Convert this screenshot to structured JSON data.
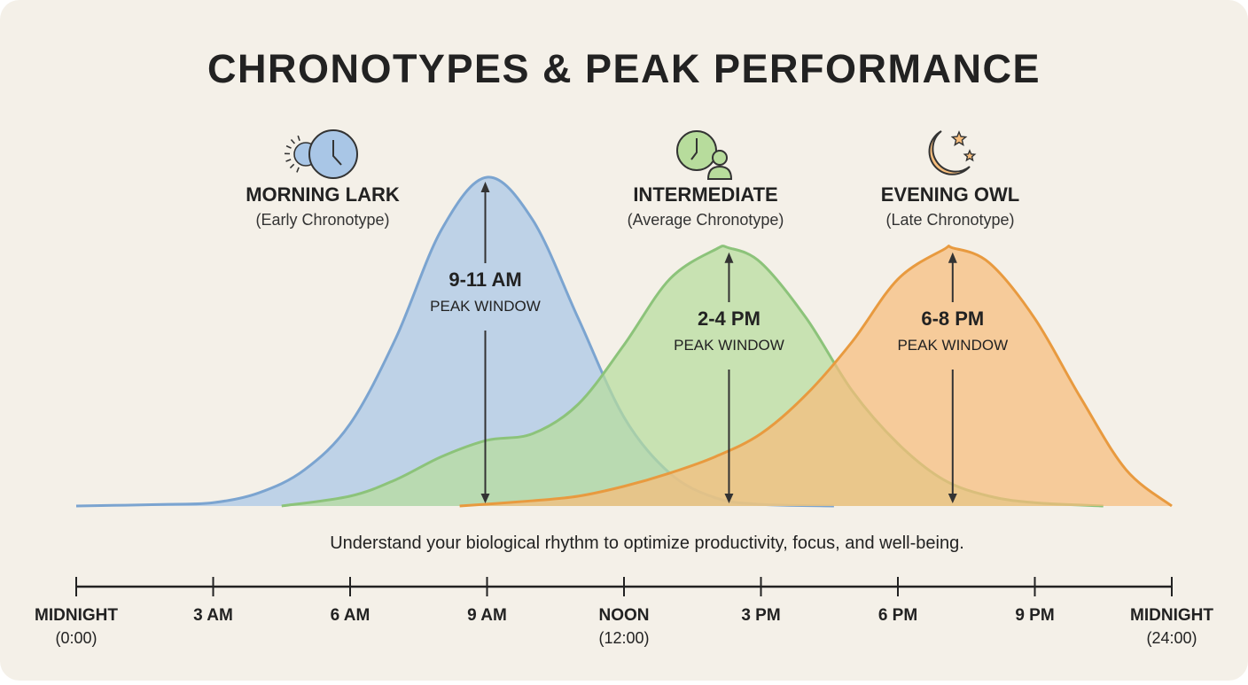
{
  "chart_data": {
    "type": "area",
    "title": "CHRONOTYPES & PEAK PERFORMANCE",
    "caption": "Understand your biological rhythm to optimize productivity, focus, and well-being.",
    "xlim": [
      0,
      24
    ],
    "ylim": [
      0,
      100
    ],
    "grid": false,
    "x_ticks": [
      {
        "hour": 0,
        "label": "MIDNIGHT",
        "sub": "(0:00)"
      },
      {
        "hour": 3,
        "label": "3 AM",
        "sub": ""
      },
      {
        "hour": 6,
        "label": "6 AM",
        "sub": ""
      },
      {
        "hour": 9,
        "label": "9 AM",
        "sub": ""
      },
      {
        "hour": 12,
        "label": "NOON",
        "sub": "(12:00)"
      },
      {
        "hour": 15,
        "label": "3 PM",
        "sub": ""
      },
      {
        "hour": 18,
        "label": "6 PM",
        "sub": ""
      },
      {
        "hour": 21,
        "label": "9 PM",
        "sub": ""
      },
      {
        "hour": 24,
        "label": "MIDNIGHT",
        "sub": "(24:00)"
      }
    ],
    "series": [
      {
        "name": "MORNING LARK",
        "subtitle": "(Early Chronotype)",
        "icon": "sun-clock-icon",
        "peak_label": "9-11 AM",
        "peak_sub": "PEAK WINDOW",
        "peak_hour": 9,
        "fill": "#a9c6e6",
        "stroke": "#7ba4d0",
        "points": [
          [
            0,
            0
          ],
          [
            2,
            0.5
          ],
          [
            3,
            1
          ],
          [
            4,
            4
          ],
          [
            5,
            11
          ],
          [
            6,
            25
          ],
          [
            7,
            51
          ],
          [
            8,
            84
          ],
          [
            9,
            100
          ],
          [
            10,
            87
          ],
          [
            11,
            57
          ],
          [
            12,
            27
          ],
          [
            13,
            10
          ],
          [
            14,
            2.5
          ],
          [
            15,
            0.5
          ],
          [
            16.6,
            0
          ]
        ]
      },
      {
        "name": "INTERMEDIATE",
        "subtitle": "(Average Chronotype)",
        "icon": "clock-person-icon",
        "peak_label": "2-4 PM",
        "peak_sub": "PEAK WINDOW",
        "peak_hour": 14.3,
        "fill": "#b7dc9c",
        "stroke": "#8cc37a",
        "points": [
          [
            4.5,
            0
          ],
          [
            6,
            3
          ],
          [
            7,
            8
          ],
          [
            8,
            15
          ],
          [
            9,
            20
          ],
          [
            10,
            22
          ],
          [
            11,
            31
          ],
          [
            12,
            49
          ],
          [
            13,
            69
          ],
          [
            14,
            78
          ],
          [
            14.3,
            78.5
          ],
          [
            15,
            74
          ],
          [
            16,
            57
          ],
          [
            17,
            35
          ],
          [
            18,
            19
          ],
          [
            19,
            8
          ],
          [
            20,
            3
          ],
          [
            21,
            1
          ],
          [
            22.5,
            0
          ]
        ]
      },
      {
        "name": "EVENING OWL",
        "subtitle": "(Late Chronotype)",
        "icon": "moon-stars-icon",
        "peak_label": "6-8 PM",
        "peak_sub": "PEAK WINDOW",
        "peak_hour": 19.2,
        "fill": "#f6bd7c",
        "stroke": "#e89a3f",
        "points": [
          [
            8.4,
            0
          ],
          [
            10,
            1.6
          ],
          [
            11,
            3
          ],
          [
            12,
            6
          ],
          [
            13,
            10
          ],
          [
            14,
            15
          ],
          [
            15,
            22
          ],
          [
            16,
            34
          ],
          [
            17,
            50
          ],
          [
            18,
            69
          ],
          [
            19,
            78
          ],
          [
            19.2,
            78.5
          ],
          [
            20,
            74
          ],
          [
            21,
            57
          ],
          [
            22,
            33
          ],
          [
            23,
            11
          ],
          [
            24,
            0
          ]
        ]
      }
    ]
  }
}
